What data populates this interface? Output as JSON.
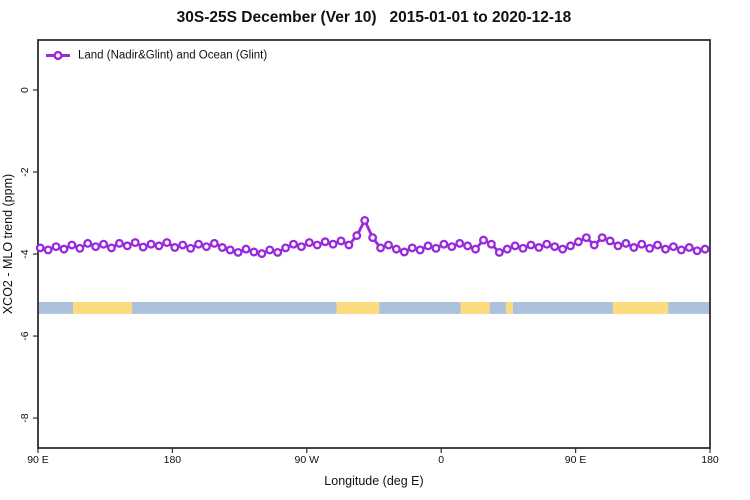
{
  "title": "30S-25S December (Ver 10)   2015-01-01 to 2020-12-18",
  "legend": {
    "label": "Land (Nadir&Glint) and Ocean (Glint)"
  },
  "colors": {
    "series_purple": "#9A28DC",
    "ocean_band": "#ACC1DC",
    "land_band": "#FBDB7D",
    "frame": "#2f2f2f",
    "text": "#111111",
    "background": "#ffffff"
  },
  "chart_data": {
    "type": "line",
    "title": "30S-25S December (Ver 10)   2015-01-01 to 2020-12-18",
    "xlabel": "Longitude (deg E)",
    "ylabel": "XCO2 - MLO trend (ppm)",
    "xlim": [
      90,
      540
    ],
    "ylim": [
      -8.73,
      1.22
    ],
    "grid": false,
    "legend_position": "top-left",
    "x_ticks": [
      {
        "pos": 90,
        "label": "90 E"
      },
      {
        "pos": 180,
        "label": "180"
      },
      {
        "pos": 270,
        "label": "90 W"
      },
      {
        "pos": 360,
        "label": "0"
      },
      {
        "pos": 450,
        "label": "90 E"
      },
      {
        "pos": 540,
        "label": "180"
      }
    ],
    "y_ticks": [
      {
        "pos": 0,
        "label": "0"
      },
      {
        "pos": -2,
        "label": "-2"
      },
      {
        "pos": -4,
        "label": "-4"
      },
      {
        "pos": -6,
        "label": "-6"
      },
      {
        "pos": -8,
        "label": "-8"
      }
    ],
    "legend": {
      "label": "Land (Nadir&Glint) and Ocean (Glint)",
      "color": "#9A28DC"
    },
    "series": [
      {
        "name": "Land (Nadir&Glint) and Ocean (Glint)",
        "color": "#9A28DC",
        "marker": "open-circle",
        "x": [
          91.5,
          96.8,
          102.1,
          107.4,
          112.7,
          118,
          123.3,
          128.6,
          133.9,
          139.2,
          144.5,
          149.8,
          155.1,
          160.4,
          165.7,
          171,
          176.3,
          181.6,
          186.9,
          192.2,
          197.5,
          202.8,
          208.1,
          213.4,
          218.7,
          224,
          229.3,
          234.6,
          239.9,
          245.2,
          250.5,
          255.8,
          261.1,
          266.4,
          271.7,
          277,
          282.3,
          287.6,
          292.9,
          298.2,
          303.5,
          308.8,
          314.1,
          319.4,
          324.7,
          330,
          335.3,
          340.6,
          345.9,
          351.2,
          356.5,
          361.8,
          367.1,
          372.4,
          377.7,
          383,
          388.3,
          393.6,
          398.9,
          404.2,
          409.5,
          414.8,
          420.1,
          425.4,
          430.7,
          436,
          441.3,
          446.6,
          451.9,
          457.2,
          462.5,
          467.8,
          473.1,
          478.4,
          483.7,
          489,
          494.3,
          499.6,
          504.9,
          510.2,
          515.5,
          520.8,
          526.1,
          531.4,
          536.7
        ],
        "y": [
          -3.85,
          -3.9,
          -3.82,
          -3.88,
          -3.78,
          -3.86,
          -3.74,
          -3.82,
          -3.76,
          -3.85,
          -3.74,
          -3.8,
          -3.72,
          -3.83,
          -3.76,
          -3.8,
          -3.72,
          -3.84,
          -3.78,
          -3.86,
          -3.76,
          -3.82,
          -3.74,
          -3.84,
          -3.9,
          -3.96,
          -3.88,
          -3.95,
          -3.99,
          -3.9,
          -3.96,
          -3.85,
          -3.76,
          -3.82,
          -3.72,
          -3.78,
          -3.7,
          -3.76,
          -3.68,
          -3.78,
          -3.55,
          -3.18,
          -3.6,
          -3.85,
          -3.78,
          -3.88,
          -3.95,
          -3.85,
          -3.9,
          -3.8,
          -3.86,
          -3.76,
          -3.82,
          -3.74,
          -3.8,
          -3.88,
          -3.66,
          -3.76,
          -3.96,
          -3.88,
          -3.8,
          -3.86,
          -3.78,
          -3.84,
          -3.76,
          -3.82,
          -3.88,
          -3.8,
          -3.7,
          -3.6,
          -3.78,
          -3.6,
          -3.68,
          -3.8,
          -3.74,
          -3.84,
          -3.76,
          -3.86,
          -3.78,
          -3.88,
          -3.82,
          -3.9,
          -3.84,
          -3.92,
          -3.88
        ]
      }
    ],
    "surface_band": {
      "value_top": -5.17,
      "value_bottom": -5.46,
      "colors": {
        "ocean": "#ACC1DC",
        "land": "#FBDB7D"
      },
      "segments": [
        {
          "from": 90,
          "to": 113.5,
          "surface": "ocean"
        },
        {
          "from": 113.5,
          "to": 153,
          "surface": "land"
        },
        {
          "from": 153,
          "to": 290,
          "surface": "ocean"
        },
        {
          "from": 290,
          "to": 318.5,
          "surface": "land"
        },
        {
          "from": 318.5,
          "to": 373,
          "surface": "ocean"
        },
        {
          "from": 373,
          "to": 392.5,
          "surface": "land"
        },
        {
          "from": 392.5,
          "to": 403.5,
          "surface": "ocean"
        },
        {
          "from": 403.5,
          "to": 408,
          "surface": "land"
        },
        {
          "from": 408,
          "to": 475,
          "surface": "ocean"
        },
        {
          "from": 475,
          "to": 512,
          "surface": "land"
        },
        {
          "from": 512,
          "to": 540,
          "surface": "ocean"
        }
      ]
    }
  }
}
